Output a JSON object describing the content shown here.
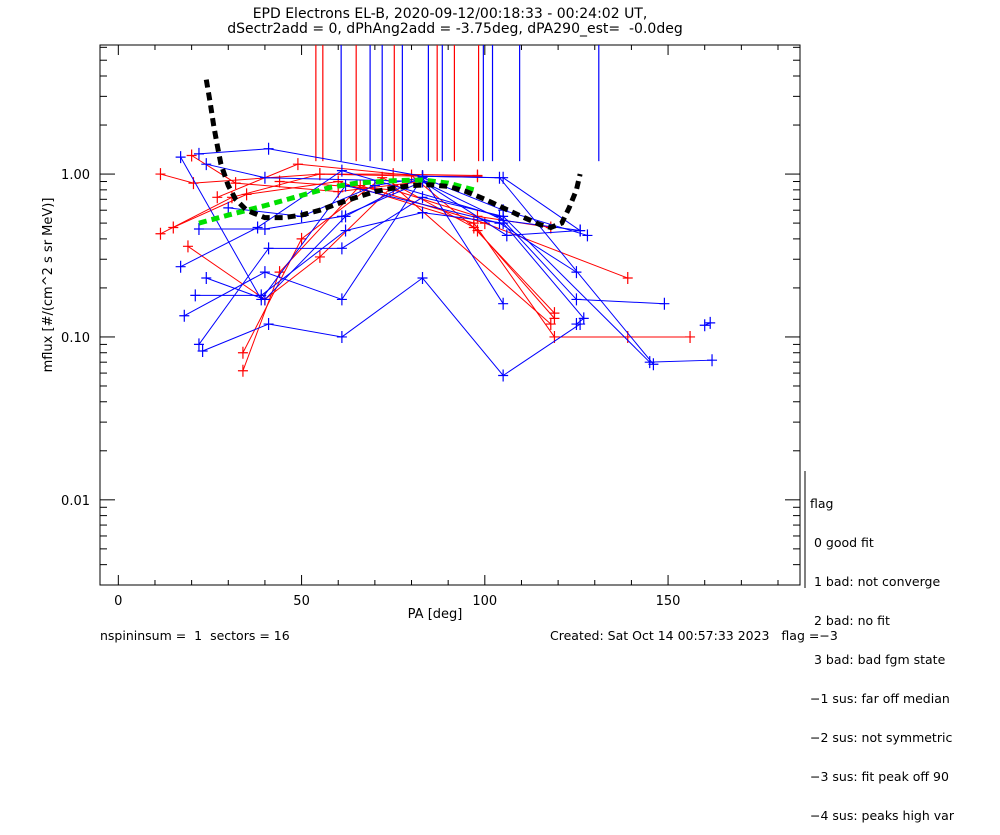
{
  "chart_data": {
    "type": "line",
    "title": [
      "EPD Electrons EL-B, 2020-09-12/00:18:33 - 00:24:02 UT,",
      "dSectr2add = 0, dPhAng2add = -3.75deg, dPA290_est=  -0.0deg"
    ],
    "xlabel": "PA [deg]",
    "ylabel": "mflux [#/(cm^2 s sr MeV)]",
    "xlim": [
      -5,
      186
    ],
    "ylim": [
      0.003,
      6.2
    ],
    "yscale": "log",
    "xticks": [
      0,
      50,
      100,
      150
    ],
    "xtick_labels": [
      "0",
      "50",
      "100",
      "150"
    ],
    "yticks": [
      1.0,
      0.1,
      0.01
    ],
    "ytick_labels": [
      "1.00",
      "0.10",
      "0.01"
    ],
    "colors": {
      "red": "#ff0000",
      "blue": "#0000ff",
      "fit": "#000000",
      "green": "#00e000"
    },
    "vertical_markers": {
      "red": [
        53.9,
        55.8,
        64.9,
        75.3,
        87.0,
        91.7,
        98.3
      ],
      "blue": [
        60.8,
        68.7,
        72.0,
        77.5,
        84.6,
        88.4,
        99.6,
        102.1,
        109.5,
        131.1
      ],
      "from_flux": 1.2
    },
    "series": [
      {
        "color": "red",
        "points": [
          [
            11.5,
            1.0
          ],
          [
            20.5,
            0.88
          ],
          [
            55,
            1.0
          ],
          [
            83,
            0.97
          ],
          [
            98,
            0.97
          ]
        ]
      },
      {
        "color": "red",
        "points": [
          [
            11.5,
            0.43
          ],
          [
            31,
            0.72
          ],
          [
            55,
            1.0
          ],
          [
            75,
            1.0
          ],
          [
            98,
            0.98
          ]
        ]
      },
      {
        "color": "red",
        "points": [
          [
            20,
            1.3
          ],
          [
            32,
            0.88
          ],
          [
            60,
            0.78
          ],
          [
            83,
            0.9
          ]
        ]
      },
      {
        "color": "red",
        "points": [
          [
            27,
            0.72
          ],
          [
            49,
            1.15
          ],
          [
            80,
            0.98
          ],
          [
            98,
            0.45
          ],
          [
            119,
            0.13
          ]
        ]
      },
      {
        "color": "red",
        "points": [
          [
            15,
            0.47
          ],
          [
            35,
            0.75
          ],
          [
            60,
            0.9
          ],
          [
            97,
            0.5
          ],
          [
            119,
            0.1
          ],
          [
            139,
            0.1
          ],
          [
            156,
            0.1
          ]
        ]
      },
      {
        "color": "red",
        "points": [
          [
            19,
            0.36
          ],
          [
            40,
            0.17
          ],
          [
            55,
            0.31
          ],
          [
            75,
            0.85
          ],
          [
            118,
            0.12
          ]
        ]
      },
      {
        "color": "red",
        "points": [
          [
            34,
            0.08
          ],
          [
            50,
            0.4
          ],
          [
            72,
            0.95
          ],
          [
            97,
            0.47
          ],
          [
            119,
            0.14
          ]
        ]
      },
      {
        "color": "red",
        "points": [
          [
            34,
            0.062
          ],
          [
            44,
            0.25
          ],
          [
            66,
            0.85
          ],
          [
            100,
            0.5
          ],
          [
            139,
            0.23
          ]
        ]
      },
      {
        "color": "red",
        "points": [
          [
            44,
            0.9
          ],
          [
            75,
            0.8
          ],
          [
            98,
            0.55
          ],
          [
            118,
            0.47
          ]
        ]
      },
      {
        "color": "blue",
        "points": [
          [
            22,
            1.33
          ],
          [
            41,
            1.43
          ],
          [
            83,
            0.97
          ],
          [
            105,
            0.95
          ],
          [
            126,
            0.45
          ]
        ]
      },
      {
        "color": "blue",
        "points": [
          [
            17,
            1.27
          ],
          [
            39,
            0.17
          ],
          [
            62,
            0.85
          ],
          [
            104,
            0.5
          ],
          [
            125,
            0.25
          ]
        ]
      },
      {
        "color": "blue",
        "points": [
          [
            24,
            1.15
          ],
          [
            40,
            0.95
          ],
          [
            83,
            0.9
          ],
          [
            105,
            0.52
          ],
          [
            126,
            0.45
          ]
        ]
      },
      {
        "color": "blue",
        "points": [
          [
            17,
            0.27
          ],
          [
            38,
            0.47
          ],
          [
            61,
            1.05
          ],
          [
            104,
            0.55
          ],
          [
            125,
            0.17
          ],
          [
            149,
            0.16
          ]
        ]
      },
      {
        "color": "blue",
        "points": [
          [
            18,
            0.135
          ],
          [
            40,
            0.25
          ],
          [
            61,
            0.17
          ],
          [
            83,
            0.95
          ],
          [
            105,
            0.16
          ]
        ]
      },
      {
        "color": "blue",
        "points": [
          [
            21,
            0.18
          ],
          [
            39,
            0.18
          ],
          [
            62,
            0.45
          ],
          [
            83,
            0.58
          ],
          [
            105,
            0.5
          ],
          [
            127,
            0.13
          ],
          [
            125,
            0.12
          ]
        ]
      },
      {
        "color": "blue",
        "points": [
          [
            22,
            0.09
          ],
          [
            41,
            0.35
          ],
          [
            61,
            0.35
          ],
          [
            83,
            0.72
          ],
          [
            105,
            0.55
          ],
          [
            145,
            0.07
          ],
          [
            162,
            0.072
          ]
        ]
      },
      {
        "color": "blue",
        "points": [
          [
            23,
            0.082
          ],
          [
            41,
            0.12
          ],
          [
            61,
            0.1
          ],
          [
            83,
            0.23
          ],
          [
            105,
            0.058
          ],
          [
            126,
            0.12
          ]
        ]
      },
      {
        "color": "blue",
        "points": [
          [
            24,
            0.23
          ],
          [
            40,
            0.17
          ],
          [
            62,
            0.55
          ],
          [
            83,
            0.97
          ],
          [
            104,
            0.95
          ],
          [
            146,
            0.068
          ]
        ]
      },
      {
        "color": "blue",
        "points": [
          [
            22,
            0.46
          ],
          [
            40,
            0.46
          ],
          [
            61,
            0.55
          ],
          [
            83,
            0.9
          ],
          [
            106,
            0.42
          ],
          [
            126,
            0.45
          ]
        ]
      },
      {
        "color": "blue",
        "points": [
          [
            30,
            0.62
          ],
          [
            50,
            0.55
          ],
          [
            70,
            0.85
          ],
          [
            83,
            0.95
          ],
          [
            105,
            0.6
          ],
          [
            128,
            0.42
          ]
        ]
      },
      {
        "color": "blue",
        "points": [
          [
            160,
            0.118
          ],
          [
            161.5,
            0.122
          ]
        ]
      }
    ],
    "fit_curve": [
      [
        24,
        3.8
      ],
      [
        25,
        2.8
      ],
      [
        26,
        2.0
      ],
      [
        27,
        1.5
      ],
      [
        28,
        1.15
      ],
      [
        30,
        0.85
      ],
      [
        32,
        0.7
      ],
      [
        35,
        0.6
      ],
      [
        40,
        0.54
      ],
      [
        45,
        0.54
      ],
      [
        50,
        0.56
      ],
      [
        55,
        0.6
      ],
      [
        60,
        0.66
      ],
      [
        65,
        0.72
      ],
      [
        70,
        0.78
      ],
      [
        75,
        0.82
      ],
      [
        80,
        0.85
      ],
      [
        85,
        0.86
      ],
      [
        90,
        0.84
      ],
      [
        95,
        0.78
      ],
      [
        100,
        0.7
      ],
      [
        105,
        0.62
      ],
      [
        110,
        0.55
      ],
      [
        115,
        0.49
      ],
      [
        118,
        0.47
      ],
      [
        121,
        0.5
      ],
      [
        123,
        0.62
      ],
      [
        125,
        0.8
      ],
      [
        126,
        1.0
      ]
    ],
    "green_curve": [
      [
        22,
        0.5
      ],
      [
        30,
        0.56
      ],
      [
        40,
        0.64
      ],
      [
        50,
        0.74
      ],
      [
        58,
        0.83
      ],
      [
        65,
        0.88
      ],
      [
        75,
        0.91
      ],
      [
        83,
        0.92
      ],
      [
        90,
        0.88
      ],
      [
        97,
        0.8
      ]
    ]
  },
  "legend": {
    "title": "flag",
    "items": [
      " 0 good fit",
      " 1 bad: not converge",
      " 2 bad: no fit",
      " 3 bad: bad fgm state",
      "−1 sus: far off median",
      "−2 sus: not symmetric",
      "−3 sus: fit peak off 90",
      "−4 sus: peaks high var"
    ]
  },
  "footer": {
    "left": "nspininsum =  1  sectors = 16",
    "right": "Created: Sat Oct 14 00:57:33 2023   flag =−3"
  }
}
